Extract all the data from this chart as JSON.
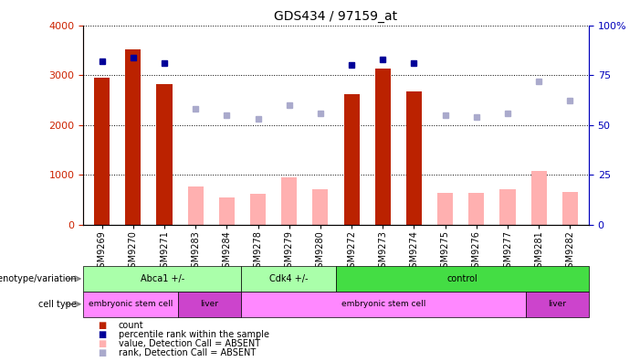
{
  "title": "GDS434 / 97159_at",
  "samples": [
    "GSM9269",
    "GSM9270",
    "GSM9271",
    "GSM9283",
    "GSM9284",
    "GSM9278",
    "GSM9279",
    "GSM9280",
    "GSM9272",
    "GSM9273",
    "GSM9274",
    "GSM9275",
    "GSM9276",
    "GSM9277",
    "GSM9281",
    "GSM9282"
  ],
  "count_values": [
    2950,
    3520,
    2820,
    null,
    null,
    null,
    null,
    null,
    2620,
    3130,
    2680,
    null,
    null,
    null,
    null,
    null
  ],
  "count_absent": [
    null,
    null,
    null,
    760,
    550,
    620,
    950,
    700,
    null,
    null,
    null,
    640,
    640,
    700,
    1080,
    650
  ],
  "rank_present": [
    82,
    84,
    81,
    null,
    null,
    null,
    null,
    null,
    80,
    83,
    81,
    null,
    null,
    null,
    null,
    null
  ],
  "rank_absent": [
    null,
    null,
    null,
    58,
    55,
    53,
    60,
    56,
    null,
    null,
    null,
    55,
    54,
    56,
    72,
    62
  ],
  "ylim_left": [
    0,
    4000
  ],
  "ylim_right": [
    0,
    100
  ],
  "yticks_left": [
    0,
    1000,
    2000,
    3000,
    4000
  ],
  "yticks_right": [
    0,
    25,
    50,
    75,
    100
  ],
  "ytick_labels_left": [
    "0",
    "1000",
    "2000",
    "3000",
    "4000"
  ],
  "ytick_labels_right": [
    "0",
    "25",
    "50",
    "75",
    "100%"
  ],
  "geno_groups": [
    {
      "label": "Abca1 +/-",
      "start": 0,
      "end": 5,
      "color": "#AAFFAA"
    },
    {
      "label": "Cdk4 +/-",
      "start": 5,
      "end": 8,
      "color": "#AAFFAA"
    },
    {
      "label": "control",
      "start": 8,
      "end": 16,
      "color": "#44DD44"
    }
  ],
  "cell_groups": [
    {
      "label": "embryonic stem cell",
      "start": 0,
      "end": 3,
      "color": "#FF88FF"
    },
    {
      "label": "liver",
      "start": 3,
      "end": 5,
      "color": "#CC44CC"
    },
    {
      "label": "embryonic stem cell",
      "start": 5,
      "end": 14,
      "color": "#FF88FF"
    },
    {
      "label": "liver",
      "start": 14,
      "end": 16,
      "color": "#CC44CC"
    }
  ],
  "bar_color_present": "#BB2200",
  "bar_color_absent": "#FFB0B0",
  "dot_color_present": "#000099",
  "dot_color_absent": "#AAAACC",
  "left_axis_color": "#CC2200",
  "right_axis_color": "#0000BB",
  "legend_items": [
    {
      "color": "#BB2200",
      "marker": "s",
      "label": "count"
    },
    {
      "color": "#000099",
      "marker": "s",
      "label": "percentile rank within the sample"
    },
    {
      "color": "#FFB0B0",
      "marker": "s",
      "label": "value, Detection Call = ABSENT"
    },
    {
      "color": "#AAAACC",
      "marker": "s",
      "label": "rank, Detection Call = ABSENT"
    }
  ]
}
